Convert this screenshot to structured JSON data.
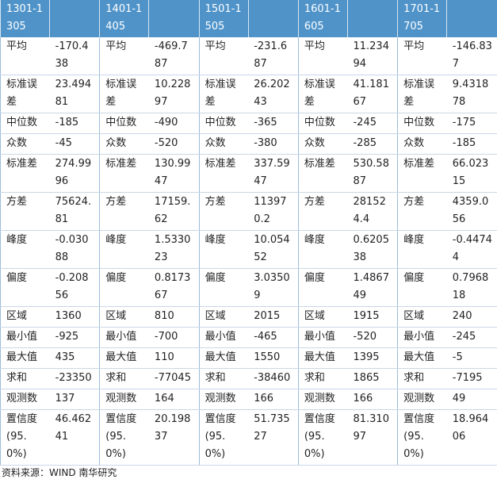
{
  "table": {
    "header": [
      "1301-1305",
      "1401-1405",
      "1501-1505",
      "1601-1605",
      "1701-1705"
    ],
    "rows": [
      [
        "平均",
        "-170.438",
        "平均",
        "-469.787",
        "平均",
        "-231.687",
        "平均",
        "11.23494",
        "平均",
        "-146.837"
      ],
      [
        "标准误差",
        "23.49481",
        "标准误差",
        "10.22897",
        "标准误差",
        "26.20243",
        "标准误差",
        "41.18167",
        "标准误差",
        "9.431878"
      ],
      [
        "中位数",
        "-185",
        "中位数",
        "-490",
        "中位数",
        "-365",
        "中位数",
        "-245",
        "中位数",
        "-175"
      ],
      [
        "众数",
        "-45",
        "众数",
        "-520",
        "众数",
        "-380",
        "众数",
        "-285",
        "众数",
        "-185"
      ],
      [
        "标准差",
        "274.9996",
        "标准差",
        "130.9947",
        "标准差",
        "337.5947",
        "标准差",
        "530.5887",
        "标准差",
        "66.02315"
      ],
      [
        "方差",
        "75624.81",
        "方差",
        "17159.62",
        "方差",
        "113970.2",
        "方差",
        "281524.4",
        "方差",
        "4359.056"
      ],
      [
        "峰度",
        "-0.03088",
        "峰度",
        "1.533023",
        "峰度",
        "10.05452",
        "峰度",
        "0.620538",
        "峰度",
        "-0.44744"
      ],
      [
        "偏度",
        "-0.20856",
        "偏度",
        "0.817367",
        "偏度",
        "3.03509",
        "偏度",
        "1.486749",
        "偏度",
        "0.796818"
      ],
      [
        "区域",
        "1360",
        "区域",
        "810",
        "区域",
        "2015",
        "区域",
        "1915",
        "区域",
        "240"
      ],
      [
        "最小值",
        "-925",
        "最小值",
        "-700",
        "最小值",
        "-465",
        "最小值",
        "-520",
        "最小值",
        "-245"
      ],
      [
        "最大值",
        "435",
        "最大值",
        "110",
        "最大值",
        "1550",
        "最大值",
        "1395",
        "最大值",
        "-5"
      ],
      [
        "求和",
        "-23350",
        "求和",
        "-77045",
        "求和",
        "-38460",
        "求和",
        "1865",
        "求和",
        "-7195"
      ],
      [
        "观测数",
        "137",
        "观测数",
        "164",
        "观测数",
        "166",
        "观测数",
        "166",
        "观测数",
        "49"
      ],
      [
        "置信度(95.0%)",
        "46.46241",
        "置信度(95.0%)",
        "20.19837",
        "置信度(95.0%)",
        "51.73527",
        "置信度(95.0%)",
        "81.31097",
        "置信度(95.0%)",
        "18.96406"
      ]
    ]
  },
  "footer": {
    "source": "资料来源：WIND 南华研究"
  }
}
